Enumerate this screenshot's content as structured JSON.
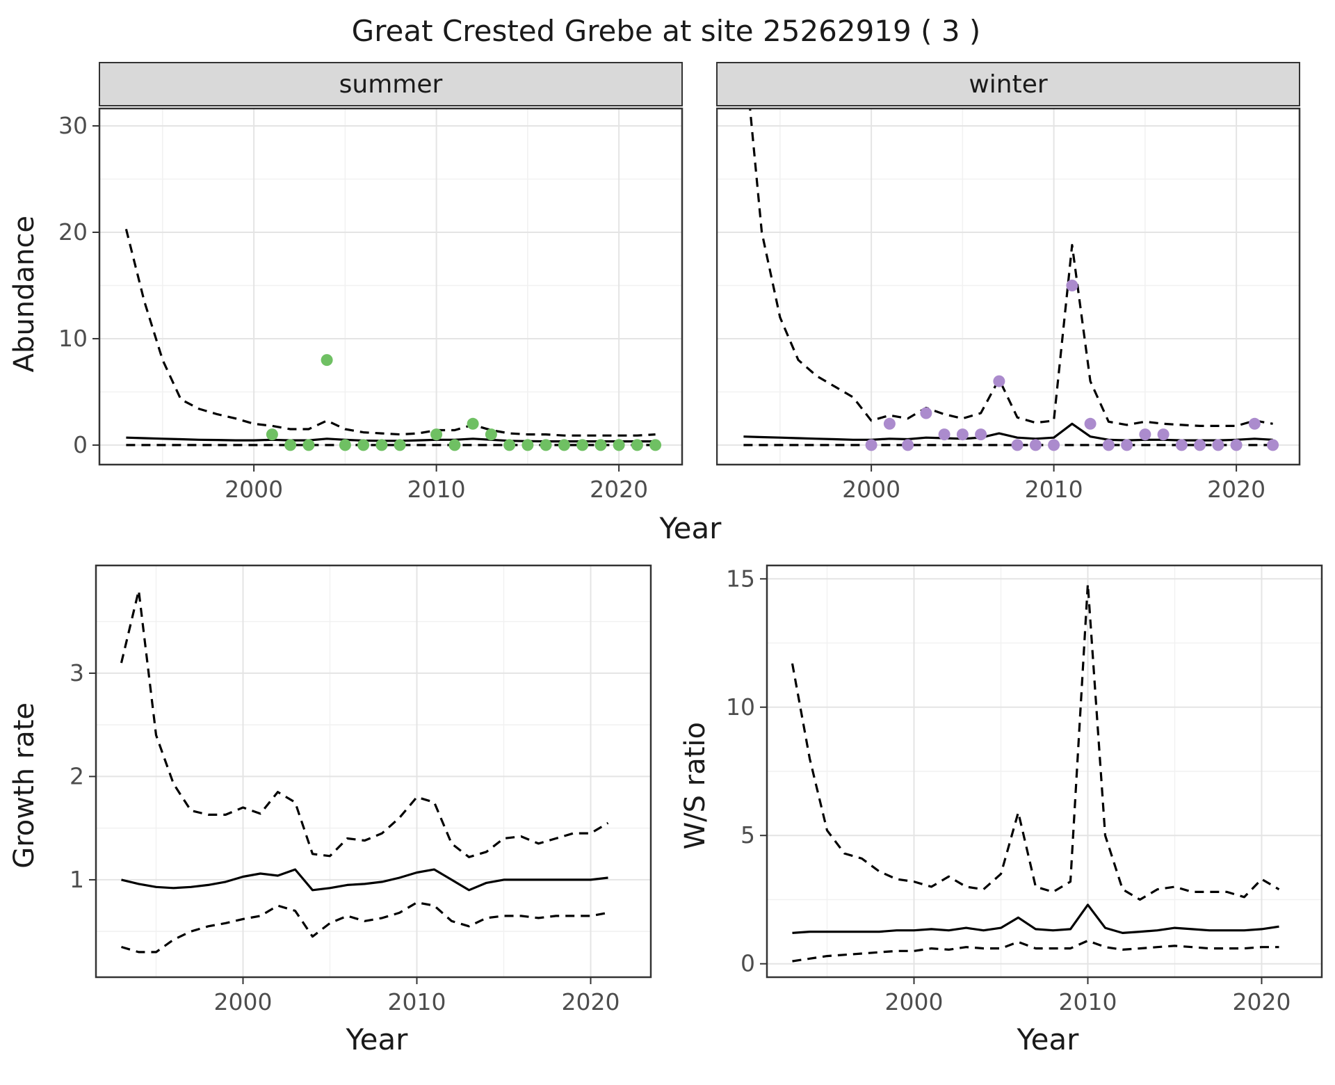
{
  "title": "Great Crested Grebe at site 25262919 ( 3 )",
  "colors": {
    "summer_points": "#6FC063",
    "winter_points": "#AB8BCD",
    "line": "#000000",
    "strip_bg": "#D9D9D9",
    "grid_major": "#E4E4E4",
    "grid_minor": "#F1F1F1",
    "panel_border": "#333333",
    "tick_text": "#4D4D4D"
  },
  "chart_data": [
    {
      "id": "abundance-summer",
      "type": "line",
      "facet_label": "summer",
      "xlabel": "Year",
      "ylabel": "Abundance",
      "xlim": [
        1991.5,
        2023.5
      ],
      "ylim": [
        -1.9,
        31.7
      ],
      "xticks": [
        2000,
        2010,
        2020
      ],
      "yticks": [
        0,
        10,
        20,
        30
      ],
      "xminor": [
        1995,
        2005,
        2015
      ],
      "yminor": [
        5,
        15,
        25
      ],
      "x": [
        1993,
        1994,
        1995,
        1996,
        1997,
        1998,
        1999,
        2000,
        2001,
        2002,
        2003,
        2004,
        2005,
        2006,
        2007,
        2008,
        2009,
        2010,
        2011,
        2012,
        2013,
        2014,
        2015,
        2016,
        2017,
        2018,
        2019,
        2020,
        2021,
        2022
      ],
      "series": [
        {
          "name": "fit",
          "dash": false,
          "y": [
            0.7,
            0.65,
            0.6,
            0.55,
            0.5,
            0.48,
            0.45,
            0.45,
            0.5,
            0.45,
            0.45,
            0.6,
            0.5,
            0.42,
            0.4,
            0.4,
            0.45,
            0.5,
            0.5,
            0.6,
            0.5,
            0.4,
            0.37,
            0.35,
            0.35,
            0.35,
            0.35,
            0.35,
            0.35,
            0.35
          ]
        },
        {
          "name": "ci-upper",
          "dash": true,
          "y": [
            20.3,
            13.5,
            8.0,
            4.3,
            3.4,
            2.9,
            2.5,
            2.0,
            1.8,
            1.5,
            1.5,
            2.3,
            1.5,
            1.2,
            1.1,
            1.0,
            1.1,
            1.4,
            1.4,
            1.9,
            1.4,
            1.1,
            1.0,
            1.0,
            0.9,
            0.9,
            0.9,
            0.9,
            0.9,
            1.0
          ]
        },
        {
          "name": "ci-lower",
          "dash": true,
          "y": [
            0,
            0,
            0,
            0,
            0,
            0,
            0,
            0,
            0,
            0,
            0,
            0,
            0,
            0,
            0,
            0,
            0,
            0,
            0,
            0,
            0,
            0,
            0,
            0,
            0,
            0,
            0,
            0,
            0,
            0
          ]
        }
      ],
      "points": {
        "name": "observed-summer",
        "color_key": "summer_points",
        "x": [
          2001,
          2002,
          2003,
          2004,
          2005,
          2006,
          2007,
          2008,
          2010,
          2011,
          2012,
          2013,
          2014,
          2015,
          2016,
          2017,
          2018,
          2019,
          2020,
          2021,
          2022
        ],
        "y": [
          1,
          0,
          0,
          8,
          0,
          0,
          0,
          0,
          1,
          0,
          2,
          1,
          0,
          0,
          0,
          0,
          0,
          0,
          0,
          0,
          0
        ]
      }
    },
    {
      "id": "abundance-winter",
      "type": "line",
      "facet_label": "winter",
      "xlabel": "Year",
      "ylabel": "Abundance",
      "xlim": [
        1991.5,
        2023.5
      ],
      "ylim": [
        -1.9,
        31.7
      ],
      "xticks": [
        2000,
        2010,
        2020
      ],
      "yticks": [
        0,
        10,
        20,
        30
      ],
      "xminor": [
        1995,
        2005,
        2015
      ],
      "yminor": [
        5,
        15,
        25
      ],
      "x": [
        1993,
        1994,
        1995,
        1996,
        1997,
        1998,
        1999,
        2000,
        2001,
        2002,
        2003,
        2004,
        2005,
        2006,
        2007,
        2008,
        2009,
        2010,
        2011,
        2012,
        2013,
        2014,
        2015,
        2016,
        2017,
        2018,
        2019,
        2020,
        2021,
        2022
      ],
      "series": [
        {
          "name": "fit",
          "dash": false,
          "y": [
            0.8,
            0.75,
            0.7,
            0.65,
            0.6,
            0.55,
            0.5,
            0.5,
            0.6,
            0.55,
            0.7,
            0.65,
            0.6,
            0.7,
            1.1,
            0.7,
            0.6,
            0.7,
            2.0,
            0.8,
            0.5,
            0.45,
            0.5,
            0.5,
            0.45,
            0.45,
            0.45,
            0.5,
            0.6,
            0.5
          ]
        },
        {
          "name": "ci-upper",
          "dash": true,
          "y": [
            38,
            20,
            12,
            8,
            6.5,
            5.5,
            4.5,
            2.3,
            2.8,
            2.5,
            3.5,
            2.9,
            2.5,
            3.0,
            6.2,
            2.6,
            2.1,
            2.3,
            18.8,
            6.0,
            2.2,
            1.9,
            2.2,
            2.0,
            1.9,
            1.8,
            1.8,
            1.8,
            2.3,
            2.0
          ]
        },
        {
          "name": "ci-lower",
          "dash": true,
          "y": [
            0,
            0,
            0,
            0,
            0,
            0,
            0,
            0,
            0,
            0,
            0,
            0,
            0,
            0,
            0,
            0,
            0,
            0,
            0,
            0,
            0,
            0,
            0,
            0,
            0,
            0,
            0,
            0,
            0,
            0
          ]
        }
      ],
      "points": {
        "name": "observed-winter",
        "color_key": "winter_points",
        "x": [
          2000,
          2001,
          2002,
          2003,
          2004,
          2005,
          2006,
          2007,
          2008,
          2009,
          2010,
          2011,
          2012,
          2013,
          2014,
          2015,
          2016,
          2017,
          2018,
          2019,
          2020,
          2021,
          2022
        ],
        "y": [
          0,
          2,
          0,
          3,
          1,
          1,
          1,
          6,
          0,
          0,
          0,
          15,
          2,
          0,
          0,
          1,
          1,
          0,
          0,
          0,
          0,
          2,
          0
        ]
      }
    },
    {
      "id": "growth-rate",
      "type": "line",
      "facet_label": "",
      "xlabel": "Year",
      "ylabel": "Growth rate",
      "xlim": [
        1991.5,
        2023.5
      ],
      "ylim": [
        0.05,
        4.05
      ],
      "xticks": [
        2000,
        2010,
        2020
      ],
      "yticks": [
        1,
        2,
        3
      ],
      "xminor": [
        1995,
        2005,
        2015
      ],
      "yminor": [
        0.5,
        1.5,
        2.5,
        3.5
      ],
      "x": [
        1993,
        1994,
        1995,
        1996,
        1997,
        1998,
        1999,
        2000,
        2001,
        2002,
        2003,
        2004,
        2005,
        2006,
        2007,
        2008,
        2009,
        2010,
        2011,
        2012,
        2013,
        2014,
        2015,
        2016,
        2017,
        2018,
        2019,
        2020,
        2021
      ],
      "series": [
        {
          "name": "fit",
          "dash": false,
          "y": [
            1.0,
            0.96,
            0.93,
            0.92,
            0.93,
            0.95,
            0.98,
            1.03,
            1.06,
            1.04,
            1.1,
            0.9,
            0.92,
            0.95,
            0.96,
            0.98,
            1.02,
            1.07,
            1.1,
            1.0,
            0.9,
            0.97,
            1.0,
            1.0,
            1.0,
            1.0,
            1.0,
            1.0,
            1.02
          ]
        },
        {
          "name": "ci-upper",
          "dash": true,
          "y": [
            3.1,
            3.8,
            2.4,
            1.93,
            1.67,
            1.63,
            1.63,
            1.7,
            1.64,
            1.85,
            1.75,
            1.25,
            1.23,
            1.4,
            1.38,
            1.45,
            1.6,
            1.8,
            1.75,
            1.35,
            1.22,
            1.27,
            1.4,
            1.42,
            1.35,
            1.4,
            1.45,
            1.45,
            1.55
          ]
        },
        {
          "name": "ci-lower",
          "dash": true,
          "y": [
            0.35,
            0.3,
            0.3,
            0.42,
            0.5,
            0.55,
            0.58,
            0.62,
            0.65,
            0.75,
            0.7,
            0.45,
            0.58,
            0.65,
            0.6,
            0.63,
            0.68,
            0.78,
            0.75,
            0.6,
            0.55,
            0.63,
            0.65,
            0.65,
            0.63,
            0.65,
            0.65,
            0.65,
            0.68
          ]
        }
      ]
    },
    {
      "id": "ws-ratio",
      "type": "line",
      "facet_label": "",
      "xlabel": "Year",
      "ylabel": "W/S ratio",
      "xlim": [
        1991.5,
        2023.5
      ],
      "ylim": [
        -0.55,
        15.55
      ],
      "xticks": [
        2000,
        2010,
        2020
      ],
      "yticks": [
        0,
        5,
        10,
        15
      ],
      "xminor": [
        1995,
        2005,
        2015
      ],
      "yminor": [
        2.5,
        7.5,
        12.5
      ],
      "x": [
        1993,
        1994,
        1995,
        1996,
        1997,
        1998,
        1999,
        2000,
        2001,
        2002,
        2003,
        2004,
        2005,
        2006,
        2007,
        2008,
        2009,
        2010,
        2011,
        2012,
        2013,
        2014,
        2015,
        2016,
        2017,
        2018,
        2019,
        2020,
        2021
      ],
      "series": [
        {
          "name": "fit",
          "dash": false,
          "y": [
            1.2,
            1.25,
            1.25,
            1.25,
            1.25,
            1.25,
            1.3,
            1.3,
            1.35,
            1.3,
            1.4,
            1.3,
            1.4,
            1.8,
            1.35,
            1.3,
            1.35,
            2.3,
            1.4,
            1.2,
            1.25,
            1.3,
            1.4,
            1.35,
            1.3,
            1.3,
            1.3,
            1.35,
            1.45
          ]
        },
        {
          "name": "ci-upper",
          "dash": true,
          "y": [
            11.7,
            8.0,
            5.2,
            4.3,
            4.1,
            3.6,
            3.3,
            3.2,
            3.0,
            3.4,
            3.0,
            2.9,
            3.5,
            5.9,
            3.0,
            2.8,
            3.2,
            14.8,
            5.0,
            2.9,
            2.5,
            2.9,
            3.0,
            2.8,
            2.8,
            2.8,
            2.6,
            3.3,
            2.9
          ]
        },
        {
          "name": "ci-lower",
          "dash": true,
          "y": [
            0.1,
            0.2,
            0.3,
            0.35,
            0.4,
            0.45,
            0.5,
            0.5,
            0.6,
            0.55,
            0.65,
            0.6,
            0.6,
            0.85,
            0.6,
            0.6,
            0.6,
            0.9,
            0.65,
            0.55,
            0.6,
            0.65,
            0.7,
            0.65,
            0.6,
            0.6,
            0.6,
            0.65,
            0.65
          ]
        }
      ]
    }
  ]
}
